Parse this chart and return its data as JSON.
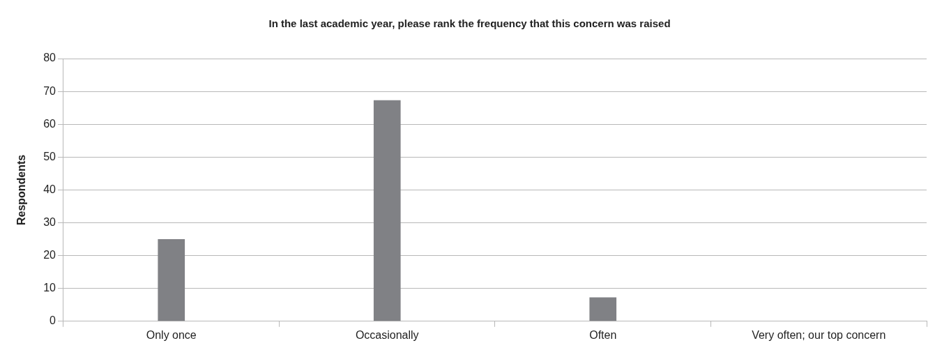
{
  "chart_data": {
    "type": "bar",
    "title": "In the last academic year, please rank the frequency that this concern was raised",
    "ylabel": "Respondents",
    "categories": [
      "Only once",
      "Occasionally",
      "Often",
      "Very often; our top concern"
    ],
    "values": [
      25,
      67.3,
      7.3,
      0
    ],
    "color": "#808185",
    "ylim": [
      0,
      80
    ],
    "yticks": [
      0,
      10,
      20,
      30,
      40,
      50,
      60,
      70,
      80
    ],
    "grid": "y",
    "legend": false
  }
}
